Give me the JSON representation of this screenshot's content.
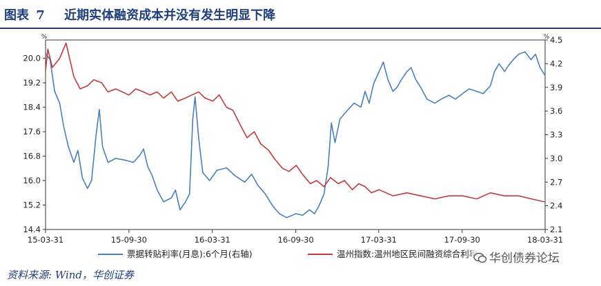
{
  "header": {
    "figure_label": "图表",
    "figure_number": "7",
    "title": "近期实体融资成本并没有发生明显下降"
  },
  "source": "资料来源: Wind，华创证券",
  "watermark": "华创债券论坛",
  "chart_data": {
    "type": "line",
    "left_axis": {
      "unit": "%",
      "ylim": [
        14.4,
        20.6
      ],
      "ticks": [
        "14.4",
        "15.2",
        "16.0",
        "16.8",
        "17.6",
        "18.4",
        "19.2",
        "20.0"
      ]
    },
    "right_axis": {
      "unit": "%",
      "ylim": [
        2.1,
        4.5
      ],
      "ticks": [
        "2.1",
        "2.4",
        "2.7",
        "3.0",
        "3.3",
        "3.6",
        "3.9",
        "4.2",
        "4.5"
      ]
    },
    "x_axis": {
      "range": [
        "2015-03-31",
        "2018-03-31"
      ],
      "ticks": [
        "15-03-31",
        "15-09-30",
        "16-03-31",
        "16-09-30",
        "17-03-31",
        "17-09-30",
        "18-03-31"
      ]
    },
    "series": [
      {
        "name": "票据转贴利率(月息):6个月(右轴)",
        "axis": "right",
        "color": "#4a7ebb",
        "points": [
          [
            "2015-03-31",
            4.33
          ],
          [
            "2015-04-10",
            4.25
          ],
          [
            "2015-04-20",
            3.85
          ],
          [
            "2015-05-01",
            3.7
          ],
          [
            "2015-05-10",
            3.4
          ],
          [
            "2015-05-20",
            3.15
          ],
          [
            "2015-06-01",
            2.95
          ],
          [
            "2015-06-10",
            3.1
          ],
          [
            "2015-06-20",
            2.75
          ],
          [
            "2015-07-01",
            2.62
          ],
          [
            "2015-07-10",
            2.72
          ],
          [
            "2015-07-20",
            3.3
          ],
          [
            "2015-07-27",
            3.62
          ],
          [
            "2015-08-03",
            3.15
          ],
          [
            "2015-08-15",
            2.95
          ],
          [
            "2015-09-01",
            3.0
          ],
          [
            "2015-09-20",
            2.98
          ],
          [
            "2015-10-10",
            2.95
          ],
          [
            "2015-10-25",
            3.05
          ],
          [
            "2015-11-01",
            3.12
          ],
          [
            "2015-11-10",
            2.9
          ],
          [
            "2015-11-20",
            2.78
          ],
          [
            "2015-12-01",
            2.6
          ],
          [
            "2015-12-15",
            2.45
          ],
          [
            "2016-01-01",
            2.5
          ],
          [
            "2016-01-10",
            2.6
          ],
          [
            "2016-01-20",
            2.35
          ],
          [
            "2016-02-01",
            2.45
          ],
          [
            "2016-02-10",
            2.55
          ],
          [
            "2016-02-17",
            3.5
          ],
          [
            "2016-02-22",
            3.78
          ],
          [
            "2016-03-01",
            3.25
          ],
          [
            "2016-03-10",
            2.82
          ],
          [
            "2016-03-25",
            2.72
          ],
          [
            "2016-04-10",
            2.85
          ],
          [
            "2016-05-01",
            2.88
          ],
          [
            "2016-05-20",
            2.78
          ],
          [
            "2016-06-10",
            2.7
          ],
          [
            "2016-06-25",
            2.8
          ],
          [
            "2016-07-10",
            2.65
          ],
          [
            "2016-07-25",
            2.55
          ],
          [
            "2016-08-10",
            2.4
          ],
          [
            "2016-08-25",
            2.3
          ],
          [
            "2016-09-10",
            2.25
          ],
          [
            "2016-09-30",
            2.3
          ],
          [
            "2016-10-15",
            2.28
          ],
          [
            "2016-10-30",
            2.35
          ],
          [
            "2016-11-10",
            2.3
          ],
          [
            "2016-11-20",
            2.4
          ],
          [
            "2016-12-01",
            2.55
          ],
          [
            "2016-12-10",
            2.9
          ],
          [
            "2016-12-17",
            3.45
          ],
          [
            "2016-12-25",
            3.2
          ],
          [
            "2017-01-05",
            3.5
          ],
          [
            "2017-01-20",
            3.6
          ],
          [
            "2017-02-05",
            3.7
          ],
          [
            "2017-02-20",
            3.65
          ],
          [
            "2017-03-01",
            3.85
          ],
          [
            "2017-03-10",
            3.7
          ],
          [
            "2017-03-20",
            3.95
          ],
          [
            "2017-04-01",
            4.1
          ],
          [
            "2017-04-10",
            4.22
          ],
          [
            "2017-04-20",
            4.0
          ],
          [
            "2017-05-01",
            3.85
          ],
          [
            "2017-05-10",
            3.9
          ],
          [
            "2017-05-20",
            4.0
          ],
          [
            "2017-06-01",
            4.1
          ],
          [
            "2017-06-10",
            4.15
          ],
          [
            "2017-06-20",
            4.0
          ],
          [
            "2017-07-01",
            3.9
          ],
          [
            "2017-07-15",
            3.75
          ],
          [
            "2017-08-01",
            3.7
          ],
          [
            "2017-08-15",
            3.75
          ],
          [
            "2017-09-01",
            3.8
          ],
          [
            "2017-09-15",
            3.75
          ],
          [
            "2017-10-01",
            3.82
          ],
          [
            "2017-10-15",
            3.88
          ],
          [
            "2017-11-01",
            3.85
          ],
          [
            "2017-11-15",
            3.82
          ],
          [
            "2017-12-01",
            3.92
          ],
          [
            "2017-12-10",
            4.1
          ],
          [
            "2017-12-20",
            4.2
          ],
          [
            "2018-01-01",
            4.1
          ],
          [
            "2018-01-10",
            4.18
          ],
          [
            "2018-01-20",
            4.25
          ],
          [
            "2018-02-01",
            4.32
          ],
          [
            "2018-02-15",
            4.35
          ],
          [
            "2018-02-28",
            4.25
          ],
          [
            "2018-03-10",
            4.32
          ],
          [
            "2018-03-20",
            4.15
          ],
          [
            "2018-03-31",
            4.05
          ]
        ]
      },
      {
        "name": "温州指数:温州地区民间融资综合利率",
        "axis": "left",
        "color": "#c0393b",
        "points": [
          [
            "2015-03-31",
            19.6
          ],
          [
            "2015-04-05",
            20.3
          ],
          [
            "2015-04-15",
            19.7
          ],
          [
            "2015-05-01",
            20.0
          ],
          [
            "2015-05-15",
            20.5
          ],
          [
            "2015-06-01",
            19.4
          ],
          [
            "2015-06-15",
            19.0
          ],
          [
            "2015-07-01",
            19.1
          ],
          [
            "2015-07-15",
            19.3
          ],
          [
            "2015-08-01",
            19.2
          ],
          [
            "2015-08-15",
            18.9
          ],
          [
            "2015-09-01",
            19.0
          ],
          [
            "2015-09-30",
            18.8
          ],
          [
            "2015-10-15",
            19.0
          ],
          [
            "2015-11-01",
            18.9
          ],
          [
            "2015-11-15",
            18.8
          ],
          [
            "2015-12-01",
            18.9
          ],
          [
            "2015-12-15",
            18.7
          ],
          [
            "2016-01-01",
            18.9
          ],
          [
            "2016-01-15",
            18.6
          ],
          [
            "2016-02-01",
            18.7
          ],
          [
            "2016-02-15",
            18.8
          ],
          [
            "2016-03-01",
            18.9
          ],
          [
            "2016-03-15",
            18.7
          ],
          [
            "2016-04-01",
            18.6
          ],
          [
            "2016-04-15",
            18.8
          ],
          [
            "2016-05-01",
            18.4
          ],
          [
            "2016-05-15",
            18.3
          ],
          [
            "2016-06-01",
            17.8
          ],
          [
            "2016-06-15",
            17.4
          ],
          [
            "2016-07-01",
            17.6
          ],
          [
            "2016-07-15",
            17.2
          ],
          [
            "2016-08-01",
            17.0
          ],
          [
            "2016-08-15",
            16.7
          ],
          [
            "2016-09-01",
            16.4
          ],
          [
            "2016-09-15",
            16.3
          ],
          [
            "2016-10-01",
            16.5
          ],
          [
            "2016-10-15",
            16.2
          ],
          [
            "2016-11-01",
            15.9
          ],
          [
            "2016-11-15",
            16.0
          ],
          [
            "2016-12-01",
            15.8
          ],
          [
            "2016-12-15",
            16.1
          ],
          [
            "2017-01-01",
            15.9
          ],
          [
            "2017-01-15",
            16.0
          ],
          [
            "2017-02-01",
            15.7
          ],
          [
            "2017-02-15",
            15.9
          ],
          [
            "2017-03-01",
            15.8
          ],
          [
            "2017-03-15",
            15.6
          ],
          [
            "2017-04-01",
            15.7
          ],
          [
            "2017-05-01",
            15.5
          ],
          [
            "2017-06-01",
            15.6
          ],
          [
            "2017-07-01",
            15.5
          ],
          [
            "2017-08-01",
            15.4
          ],
          [
            "2017-09-01",
            15.5
          ],
          [
            "2017-10-01",
            15.5
          ],
          [
            "2017-11-01",
            15.4
          ],
          [
            "2017-12-01",
            15.6
          ],
          [
            "2018-01-01",
            15.5
          ],
          [
            "2018-02-01",
            15.5
          ],
          [
            "2018-03-01",
            15.4
          ],
          [
            "2018-03-31",
            15.3
          ]
        ]
      }
    ],
    "legend_position": "bottom",
    "grid": false
  }
}
